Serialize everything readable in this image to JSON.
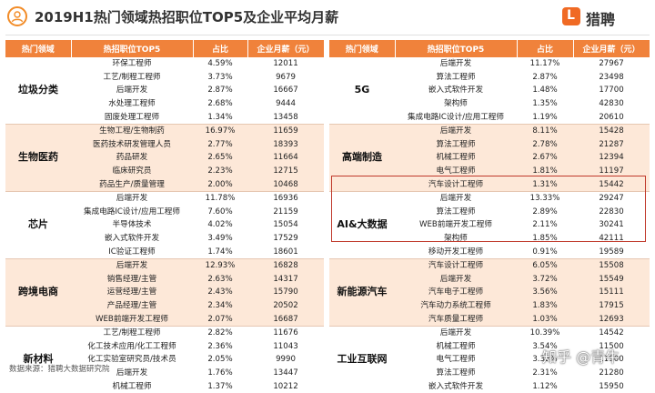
{
  "header": {
    "title": "2019H1热门领域热招职位TOP5及企业平均月薪",
    "logo_text": "猎聘",
    "logo_mark": "L"
  },
  "columns": {
    "domain": "热门领域",
    "position": "热招职位TOP5",
    "share": "占比",
    "salary": "企业月薪（元）"
  },
  "left_groups": [
    {
      "domain": "垃圾分类",
      "rows": [
        [
          "环保工程师",
          "4.59%",
          "12011"
        ],
        [
          "工艺/制程工程师",
          "3.73%",
          "9679"
        ],
        [
          "后端开发",
          "2.87%",
          "16667"
        ],
        [
          "水处理工程师",
          "2.68%",
          "9444"
        ],
        [
          "固废处理工程师",
          "1.34%",
          "13458"
        ]
      ]
    },
    {
      "domain": "生物医药",
      "rows": [
        [
          "生物工程/生物制药",
          "16.97%",
          "11659"
        ],
        [
          "医药技术研发管理人员",
          "2.77%",
          "18393"
        ],
        [
          "药品研发",
          "2.65%",
          "11664"
        ],
        [
          "临床研究员",
          "2.23%",
          "12715"
        ],
        [
          "药品生产/质量管理",
          "2.00%",
          "10468"
        ]
      ]
    },
    {
      "domain": "芯片",
      "rows": [
        [
          "后端开发",
          "11.78%",
          "16936"
        ],
        [
          "集成电路IC设计/应用工程师",
          "7.60%",
          "21159"
        ],
        [
          "半导体技术",
          "4.02%",
          "15054"
        ],
        [
          "嵌入式软件开发",
          "3.49%",
          "17529"
        ],
        [
          "IC验证工程师",
          "1.74%",
          "18601"
        ]
      ]
    },
    {
      "domain": "跨境电商",
      "rows": [
        [
          "后端开发",
          "12.93%",
          "16828"
        ],
        [
          "销售经理/主管",
          "2.63%",
          "14317"
        ],
        [
          "运营经理/主管",
          "2.43%",
          "15790"
        ],
        [
          "产品经理/主管",
          "2.34%",
          "20502"
        ],
        [
          "WEB前端开发工程师",
          "2.07%",
          "16687"
        ]
      ]
    },
    {
      "domain": "新材料",
      "rows": [
        [
          "工艺/制程工程师",
          "2.82%",
          "11676"
        ],
        [
          "化工技术应用/化工工程师",
          "2.36%",
          "11043"
        ],
        [
          "化工实验室研究员/技术员",
          "2.05%",
          "9990"
        ],
        [
          "后端开发",
          "1.76%",
          "13447"
        ],
        [
          "机械工程师",
          "1.37%",
          "10212"
        ]
      ]
    }
  ],
  "right_groups": [
    {
      "domain": "5G",
      "rows": [
        [
          "后端开发",
          "11.17%",
          "27967"
        ],
        [
          "算法工程师",
          "2.87%",
          "23498"
        ],
        [
          "嵌入式软件开发",
          "1.48%",
          "17700"
        ],
        [
          "架构师",
          "1.35%",
          "42830"
        ],
        [
          "集成电路IC设计/应用工程师",
          "1.19%",
          "20610"
        ]
      ]
    },
    {
      "domain": "高端制造",
      "rows": [
        [
          "后端开发",
          "8.11%",
          "15428"
        ],
        [
          "算法工程师",
          "2.78%",
          "21287"
        ],
        [
          "机械工程师",
          "2.67%",
          "12394"
        ],
        [
          "电气工程师",
          "1.81%",
          "11197"
        ],
        [
          "汽车设计工程师",
          "1.31%",
          "15442"
        ]
      ]
    },
    {
      "domain": "AI&大数据",
      "rows": [
        [
          "后端开发",
          "13.33%",
          "29247"
        ],
        [
          "算法工程师",
          "2.89%",
          "22830"
        ],
        [
          "WEB前端开发工程师",
          "2.11%",
          "30241"
        ],
        [
          "架构师",
          "1.85%",
          "42111"
        ],
        [
          "移动开发工程师",
          "0.91%",
          "19589"
        ]
      ]
    },
    {
      "domain": "新能源汽车",
      "rows": [
        [
          "汽车设计工程师",
          "6.05%",
          "15508"
        ],
        [
          "后端开发",
          "3.72%",
          "15549"
        ],
        [
          "汽车电子工程师",
          "3.56%",
          "15111"
        ],
        [
          "汽车动力系统工程师",
          "1.83%",
          "17915"
        ],
        [
          "汽车质量工程师",
          "1.03%",
          "12693"
        ]
      ]
    },
    {
      "domain": "工业互联网",
      "rows": [
        [
          "后端开发",
          "10.39%",
          "14542"
        ],
        [
          "机械工程师",
          "3.54%",
          "11500"
        ],
        [
          "电气工程师",
          "3.32%",
          "11900"
        ],
        [
          "算法工程师",
          "2.31%",
          "21280"
        ],
        [
          "嵌入式软件开发",
          "1.12%",
          "15950"
        ]
      ]
    }
  ],
  "footer": {
    "source": "数据来源：猎聘大数据研究院",
    "watermark": "知乎 @青牛"
  },
  "colors": {
    "header_fill": "#f0823b",
    "band_fill": "#fde8d8",
    "highlight_border": "#c0392b",
    "logo": "#f06a24"
  }
}
